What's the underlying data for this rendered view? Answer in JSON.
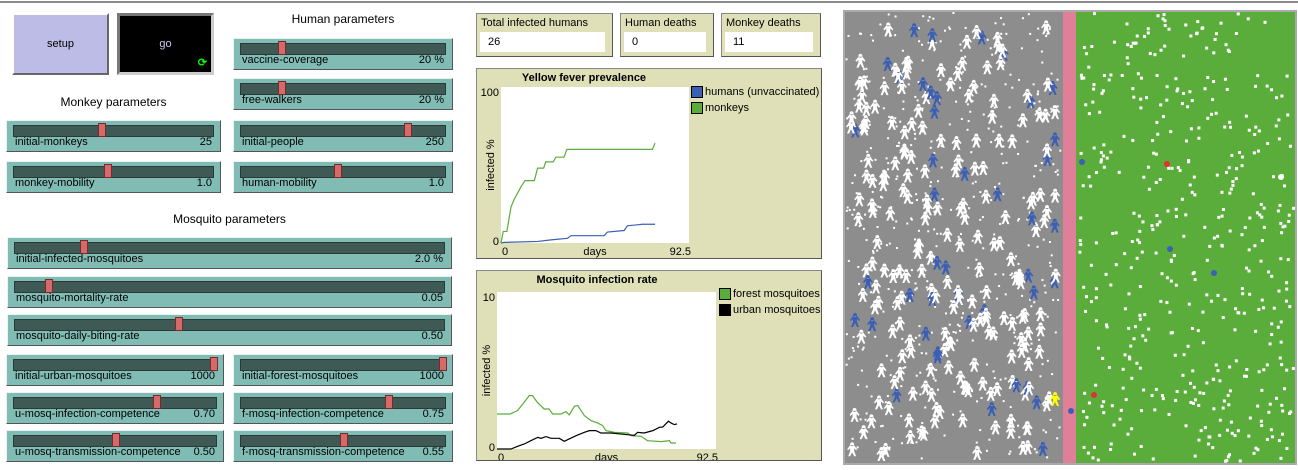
{
  "buttons": {
    "setup": "setup",
    "go": "go",
    "go_icon": "forever-loop-icon"
  },
  "sections": {
    "human": "Human parameters",
    "monkey": "Monkey parameters",
    "mosquito": "Mosquito parameters"
  },
  "sliders": [
    {
      "id": "vaccine-coverage",
      "label": "vaccine-coverage",
      "value": "20 %",
      "position": 0.2
    },
    {
      "id": "free-walkers",
      "label": "free-walkers",
      "value": "20 %",
      "position": 0.2
    },
    {
      "id": "initial-people",
      "label": "initial-people",
      "value": "250",
      "position": 0.81
    },
    {
      "id": "human-mobility",
      "label": "human-mobility",
      "value": "1.0",
      "position": 0.47
    },
    {
      "id": "initial-monkeys",
      "label": "initial-monkeys",
      "value": "25",
      "position": 0.44
    },
    {
      "id": "monkey-mobility",
      "label": "monkey-mobility",
      "value": "1.0",
      "position": 0.47
    },
    {
      "id": "initial-infected-mosquitoes",
      "label": "initial-infected-mosquitoes",
      "value": "2.0 %",
      "position": 0.16
    },
    {
      "id": "mosquito-mortality-rate",
      "label": "mosquito-mortality-rate",
      "value": "0.05",
      "position": 0.08
    },
    {
      "id": "mosquito-daily-biting-rate",
      "label": "mosquito-daily-biting-rate",
      "value": "0.50",
      "position": 0.38
    },
    {
      "id": "initial-urban-mosquitoes",
      "label": "initial-urban-mosquitoes",
      "value": "1000",
      "position": 1.0
    },
    {
      "id": "initial-forest-mosquitoes",
      "label": "initial-forest-mosquitoes",
      "value": "1000",
      "position": 1.0
    },
    {
      "id": "u-mosq-infection-competence",
      "label": "u-mosq-infection-competence",
      "value": "0.70",
      "position": 0.7
    },
    {
      "id": "f-mosq-infection-competence",
      "label": "f-mosq-infection-competence",
      "value": "0.75",
      "position": 0.72
    },
    {
      "id": "u-mosq-transmission-competence",
      "label": "u-mosq-transmission-competence",
      "value": "0.50",
      "position": 0.5
    },
    {
      "id": "f-mosq-transmission-competence",
      "label": "f-mosq-transmission-competence",
      "value": "0.55",
      "position": 0.5
    }
  ],
  "monitors": [
    {
      "label": "Total infected humans",
      "value": "26"
    },
    {
      "label": "Human deaths",
      "value": "0"
    },
    {
      "label": "Monkey deaths",
      "value": "11"
    }
  ],
  "chart_data": [
    {
      "type": "line",
      "title": "Yellow fever prevalence",
      "xlabel": "days",
      "ylabel": "infected %",
      "xlim": [
        0,
        92.5
      ],
      "ylim": [
        0,
        100
      ],
      "xticks": [
        "0",
        "92.5"
      ],
      "yticks": [
        "0",
        "100"
      ],
      "legend": "right",
      "grid": false,
      "series": [
        {
          "name": "humans (unvaccinated)",
          "color": "#3b5fb5",
          "points": [
            [
              0,
              0
            ],
            [
              1.6,
              0.4
            ],
            [
              18,
              1
            ],
            [
              24.6,
              2
            ],
            [
              32.7,
              3
            ],
            [
              34.4,
              4.7
            ],
            [
              50.7,
              4.7
            ],
            [
              52.4,
              7
            ],
            [
              60.6,
              8
            ],
            [
              62.2,
              11
            ],
            [
              69.6,
              12
            ],
            [
              75.8,
              12
            ]
          ]
        },
        {
          "name": "monkeys",
          "color": "#5aad3a",
          "points": [
            [
              0,
              0
            ],
            [
              1.1,
              7.4
            ],
            [
              2.9,
              7.4
            ],
            [
              3.6,
              13
            ],
            [
              4.9,
              23
            ],
            [
              6.5,
              28
            ],
            [
              8.2,
              32
            ],
            [
              9.8,
              36
            ],
            [
              11.8,
              40
            ],
            [
              16.4,
              40
            ],
            [
              18,
              48
            ],
            [
              21,
              48
            ],
            [
              22,
              52
            ],
            [
              25.7,
              52
            ],
            [
              27,
              55
            ],
            [
              31,
              55
            ],
            [
              32.4,
              60
            ],
            [
              74.5,
              60
            ],
            [
              75.8,
              64
            ]
          ]
        }
      ]
    },
    {
      "type": "line",
      "title": "Mosquito infection rate",
      "xlabel": "days",
      "ylabel": "infected %",
      "xlim": [
        0,
        92.5
      ],
      "ylim": [
        0,
        10
      ],
      "xticks": [
        "0",
        "92.5"
      ],
      "yticks": [
        "0",
        "10"
      ],
      "legend": "right",
      "grid": false,
      "series": [
        {
          "name": "forest mosquitoes",
          "color": "#5aad3a",
          "points": [
            [
              0,
              2.23
            ],
            [
              5.6,
              2.23
            ],
            [
              8.7,
              2.45
            ],
            [
              11.5,
              2.98
            ],
            [
              13.6,
              3.4
            ],
            [
              15,
              3.4
            ],
            [
              17,
              2.98
            ],
            [
              19.9,
              2.55
            ],
            [
              22,
              2.55
            ],
            [
              23.5,
              2.23
            ],
            [
              27,
              2.23
            ],
            [
              29.1,
              2.38
            ],
            [
              30.5,
              2.17
            ],
            [
              32.7,
              2.72
            ],
            [
              34.1,
              2.77
            ],
            [
              36.9,
              2.13
            ],
            [
              39.7,
              1.81
            ],
            [
              42.5,
              1.66
            ],
            [
              44.6,
              1.49
            ],
            [
              46,
              1.17
            ],
            [
              49.6,
              1.06
            ],
            [
              55.2,
              1.02
            ],
            [
              56.6,
              0.85
            ],
            [
              60.8,
              0.81
            ],
            [
              63.6,
              0.53
            ],
            [
              69.3,
              0.47
            ],
            [
              72.8,
              0.53
            ],
            [
              73.5,
              0.38
            ],
            [
              75.6,
              0.38
            ]
          ]
        },
        {
          "name": "urban mosquitoes",
          "color": "#000000",
          "points": [
            [
              0,
              0
            ],
            [
              5.9,
              0
            ],
            [
              8.7,
              0.17
            ],
            [
              11.5,
              0.32
            ],
            [
              14.3,
              0.53
            ],
            [
              17.2,
              0.74
            ],
            [
              18.6,
              0.68
            ],
            [
              20.7,
              0.79
            ],
            [
              22.8,
              0.68
            ],
            [
              26.3,
              0.68
            ],
            [
              28.4,
              0.49
            ],
            [
              30.5,
              0.64
            ],
            [
              33.4,
              0.85
            ],
            [
              36.9,
              1.06
            ],
            [
              39,
              1.17
            ],
            [
              41.8,
              1.17
            ],
            [
              43.9,
              1.02
            ],
            [
              48.2,
              1.02
            ],
            [
              55.2,
              0.91
            ],
            [
              58,
              0.87
            ],
            [
              59.4,
              1.06
            ],
            [
              62.2,
              1.02
            ],
            [
              65.8,
              1.17
            ],
            [
              68.6,
              1.38
            ],
            [
              70,
              1.4
            ],
            [
              72.4,
              1.77
            ],
            [
              73.5,
              1.66
            ],
            [
              74.9,
              1.55
            ],
            [
              76,
              1.6
            ]
          ]
        }
      ]
    }
  ],
  "world": {
    "urban_color": "#8d8d8d",
    "road_color": "#e07f98",
    "forest_color": "#5aad3a",
    "human_color": "#ffffff",
    "infected_human_color": "#3b5fb5"
  }
}
